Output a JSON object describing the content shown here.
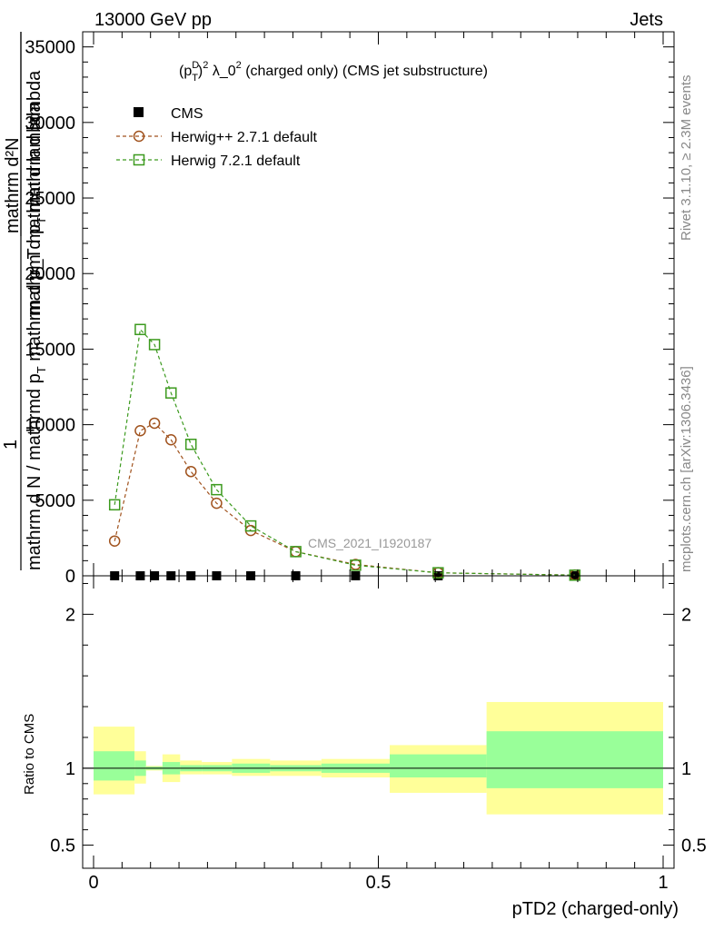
{
  "header": {
    "left": "13000 GeV pp",
    "right": "Jets"
  },
  "side_text": {
    "rivet": "Rivet 3.1.10, ≥ 2.3M events",
    "mcplots": "mcplots.cern.ch [arXiv:1306.3436]"
  },
  "watermark": "CMS_2021_I1920187",
  "colors": {
    "cms": "#000000",
    "herwigpp": "#a0521d",
    "herwig7": "#3c9a1e",
    "band_inner": "#99ff99",
    "band_outer": "#ffff99"
  },
  "chart_data": [
    {
      "type": "line",
      "panel": "main",
      "title_parts": {
        "p": "(p",
        "sup": "D",
        "sub": "T",
        "rest1": ")",
        "sq1": "2",
        "mid": " λ_0",
        "sq2": "2",
        "tail": " (charged only) (CMS jet substructure)"
      },
      "ylabel_parts": {
        "top": "mathrm d²N",
        "sub": "T",
        "bottom_a": "mathrm d p",
        "bottom_b": " mathrm d lambda",
        "one": "1",
        "full_a": "mathrm d N / mathrmd p",
        "full_b": " mathrm d p_T mathrm d lambda"
      },
      "xlim": [
        0,
        1
      ],
      "ylim": [
        0,
        36000
      ],
      "y_ticks": [
        0,
        5000,
        10000,
        15000,
        20000,
        25000,
        30000,
        35000
      ],
      "y_tick_labels": [
        "0",
        "5000",
        "10000",
        "15000",
        "20000",
        "25000",
        "30000",
        "35000"
      ],
      "legend": {
        "placement": "top-left",
        "entries": [
          "CMS",
          "Herwig++ 2.7.1 default",
          "Herwig 7.2.1 default"
        ]
      },
      "series": [
        {
          "name": "CMS",
          "marker": "filled-square",
          "x": [
            0.037,
            0.082,
            0.107,
            0.136,
            0.171,
            0.216,
            0.276,
            0.355,
            0.46,
            0.605,
            0.845
          ],
          "y": [
            0,
            0,
            0,
            0,
            0,
            0,
            0,
            0,
            0,
            0,
            0
          ]
        },
        {
          "name": "Herwig++ 2.7.1 default",
          "marker": "open-circle",
          "x": [
            0.037,
            0.082,
            0.107,
            0.136,
            0.171,
            0.216,
            0.276,
            0.355,
            0.46,
            0.605,
            0.845
          ],
          "y": [
            2300,
            9600,
            10100,
            9000,
            6900,
            4800,
            3000,
            1600,
            750,
            200,
            50
          ]
        },
        {
          "name": "Herwig 7.2.1 default",
          "marker": "open-square",
          "x": [
            0.037,
            0.082,
            0.107,
            0.136,
            0.171,
            0.216,
            0.276,
            0.355,
            0.46,
            0.605,
            0.845
          ],
          "y": [
            4700,
            16300,
            15300,
            12100,
            8700,
            5700,
            3300,
            1600,
            700,
            200,
            40
          ]
        }
      ]
    },
    {
      "type": "area",
      "panel": "ratio",
      "ylabel": "Ratio to CMS",
      "xlabel": "pTD2 (charged-only)",
      "xlim": [
        0,
        1
      ],
      "ylim": [
        0.35,
        2.25
      ],
      "x_ticks": [
        0,
        0.5,
        1
      ],
      "x_tick_labels": [
        "0",
        "0.5",
        "1"
      ],
      "y_ticks": [
        0.5,
        1,
        2
      ],
      "y_tick_labels": [
        "0.5",
        "1",
        "2"
      ],
      "reference_line": 1,
      "bins": [
        {
          "x0": 0.0,
          "x1": 0.072,
          "inner": [
            0.92,
            1.11
          ],
          "outer": [
            0.83,
            1.27
          ]
        },
        {
          "x0": 0.072,
          "x1": 0.092,
          "inner": [
            0.95,
            1.05
          ],
          "outer": [
            0.9,
            1.11
          ]
        },
        {
          "x0": 0.092,
          "x1": 0.121,
          "inner": [
            0.99,
            1.01
          ],
          "outer": [
            0.985,
            1.015
          ]
        },
        {
          "x0": 0.121,
          "x1": 0.152,
          "inner": [
            0.96,
            1.04
          ],
          "outer": [
            0.91,
            1.09
          ]
        },
        {
          "x0": 0.152,
          "x1": 0.19,
          "inner": [
            0.98,
            1.02
          ],
          "outer": [
            0.96,
            1.05
          ]
        },
        {
          "x0": 0.19,
          "x1": 0.243,
          "inner": [
            0.98,
            1.02
          ],
          "outer": [
            0.96,
            1.04
          ]
        },
        {
          "x0": 0.243,
          "x1": 0.31,
          "inner": [
            0.97,
            1.03
          ],
          "outer": [
            0.95,
            1.06
          ]
        },
        {
          "x0": 0.31,
          "x1": 0.4,
          "inner": [
            0.98,
            1.02
          ],
          "outer": [
            0.95,
            1.05
          ]
        },
        {
          "x0": 0.4,
          "x1": 0.52,
          "inner": [
            0.97,
            1.03
          ],
          "outer": [
            0.94,
            1.06
          ]
        },
        {
          "x0": 0.52,
          "x1": 0.69,
          "inner": [
            0.94,
            1.09
          ],
          "outer": [
            0.84,
            1.15
          ]
        },
        {
          "x0": 0.69,
          "x1": 1.0,
          "inner": [
            0.87,
            1.24
          ],
          "outer": [
            0.7,
            1.43
          ]
        }
      ]
    }
  ]
}
